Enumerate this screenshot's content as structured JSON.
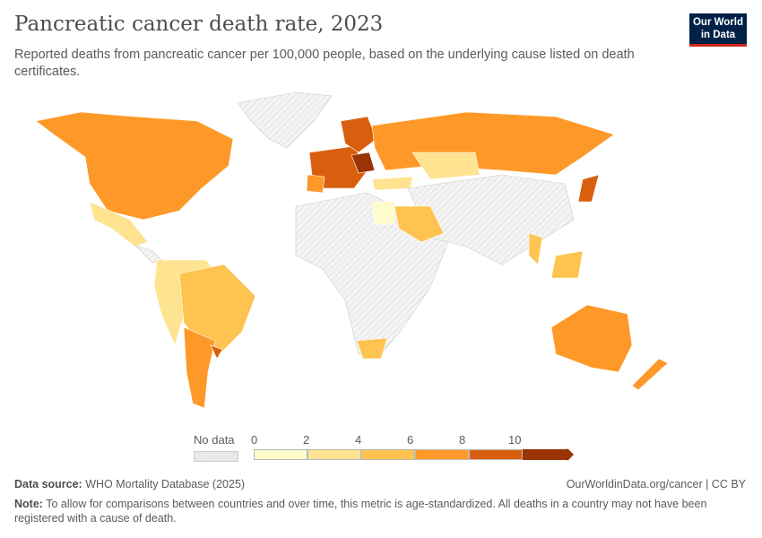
{
  "header": {
    "title": "Pancreatic cancer death rate, 2023",
    "subtitle": "Reported deaths from pancreatic cancer per 100,000 people, based on the underlying cause listed on death certificates.",
    "logo": "Our World in Data"
  },
  "legend": {
    "no_data_label": "No data",
    "ticks": [
      "0",
      "2",
      "4",
      "6",
      "8",
      "10"
    ],
    "colors": [
      "#fffccd",
      "#fee391",
      "#fec44f",
      "#fe9929",
      "#d95f0e",
      "#993404"
    ],
    "no_data_color": "#e8e8e8"
  },
  "footer": {
    "source_label": "Data source:",
    "source": "WHO Mortality Database (2025)",
    "link": "OurWorldinData.org/cancer | CC BY",
    "note_label": "Note:",
    "note": "To allow for comparisons between countries and over time, this metric is age-standardized. All deaths in a country may not have been registered with a cause of death."
  }
}
